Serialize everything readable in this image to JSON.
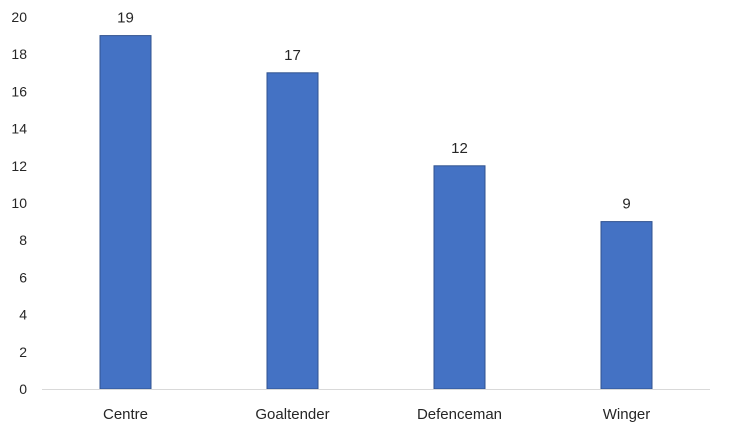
{
  "chart_data": {
    "type": "bar",
    "title": "",
    "xlabel": "",
    "ylabel": "",
    "categories": [
      "Centre",
      "Goaltender",
      "Defenceman",
      "Winger"
    ],
    "values": [
      19,
      17,
      12,
      9
    ],
    "data_labels": [
      "19",
      "17",
      "12",
      "9"
    ],
    "ylim": [
      0,
      20
    ],
    "yticks": [
      0,
      2,
      4,
      6,
      8,
      10,
      12,
      14,
      16,
      18,
      20
    ],
    "ytick_labels": [
      "0",
      "2",
      "4",
      "6",
      "8",
      "10",
      "12",
      "14",
      "16",
      "18",
      "20"
    ],
    "grid": false,
    "legend": "none",
    "bar_color": "#4472C4",
    "bar_edge_color": "#2F528F",
    "axis_color": "#D9D9D9"
  }
}
